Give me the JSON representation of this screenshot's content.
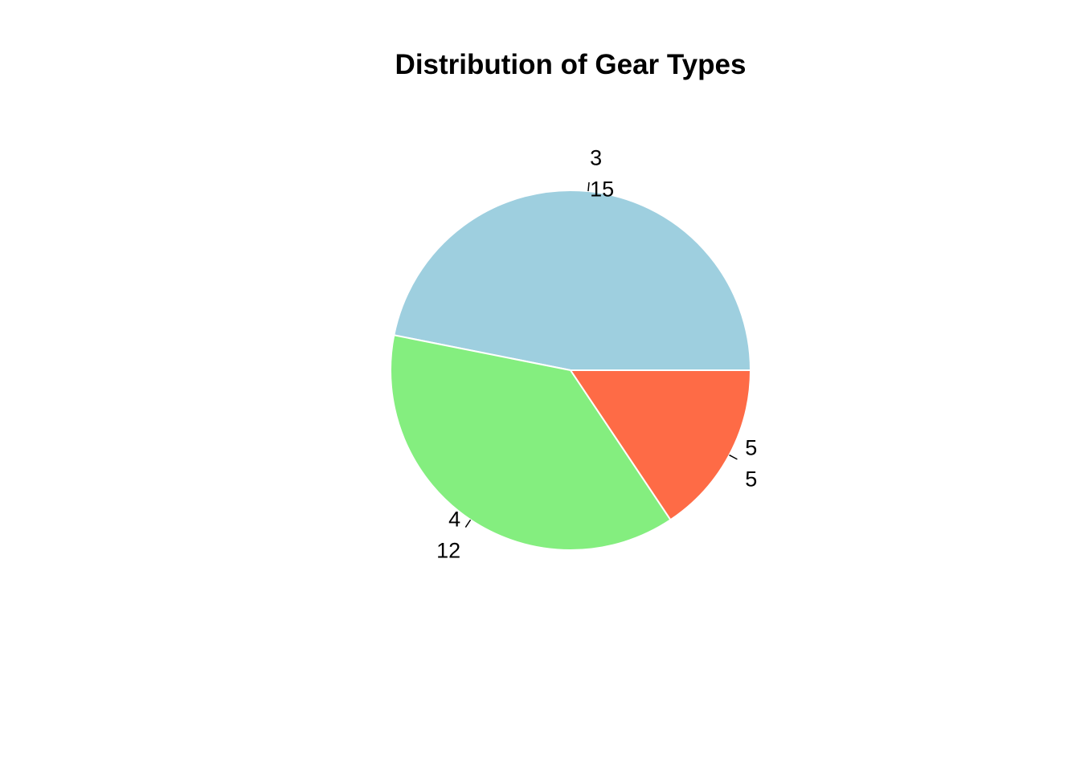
{
  "chart_data": {
    "type": "pie",
    "title": "Distribution of Gear Types",
    "categories": [
      "3",
      "4",
      "5"
    ],
    "values": [
      15,
      12,
      5
    ],
    "colors": [
      "#9ecfdf",
      "#84ee7f",
      "#fe6b46"
    ],
    "slice_border_color": "#ffffff",
    "label_color": "#000000",
    "start_angle_deg": 0,
    "direction": "counterclockwise",
    "legend": "none"
  }
}
